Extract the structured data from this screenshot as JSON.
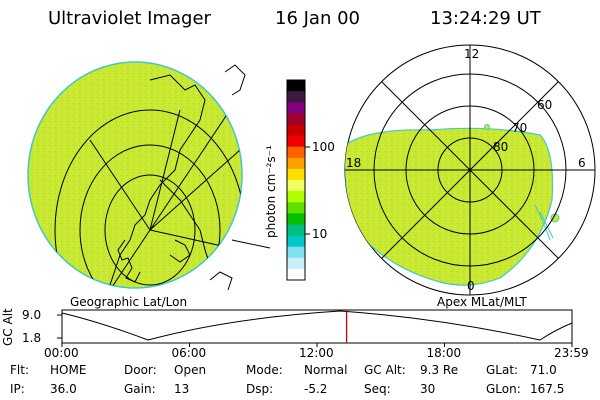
{
  "header": {
    "instrument": "Ultraviolet Imager",
    "date": "16 Jan 00",
    "time": "13:24:29 UT"
  },
  "colorbar": {
    "unit_label": "photon cm⁻²s⁻¹",
    "tick_labels": [
      "100",
      "10"
    ],
    "colors": [
      "#000000",
      "#3a1a40",
      "#800080",
      "#a00030",
      "#c80000",
      "#f00000",
      "#ff6000",
      "#ffa000",
      "#ffe000",
      "#f0ff60",
      "#b0ff00",
      "#60e000",
      "#00c000",
      "#00c080",
      "#00c8c8",
      "#80e0f0",
      "#c8f0f8",
      "#ffffff"
    ]
  },
  "left_panel": {
    "caption": "Geographic Lat/Lon",
    "fill_color": "#c8e832"
  },
  "right_panel": {
    "caption": "Apex MLat/MLT",
    "mlt_labels": {
      "top": "12",
      "left": "18",
      "right": "6",
      "bottom": "0"
    },
    "mlat_labels": [
      "60",
      "70",
      "80"
    ],
    "fill_color": "#c8e832"
  },
  "timeline": {
    "axis_label": "GC Alt",
    "y_ticks": [
      "9.0",
      "1.8"
    ],
    "x_ticks": [
      "00:00",
      "06:00",
      "12:00",
      "18:00",
      "23:59"
    ],
    "current_time_fraction": 0.558,
    "marker_color": "#d00000"
  },
  "info": {
    "row1": [
      {
        "label": "Flt:",
        "value": "HOME"
      },
      {
        "label": "Door:",
        "value": "Open"
      },
      {
        "label": "Mode:",
        "value": "Normal"
      },
      {
        "label": "GC Alt:",
        "value": "9.3 Re"
      },
      {
        "label": "GLat:",
        "value": "71.0"
      }
    ],
    "row2": [
      {
        "label": "IP:",
        "value": "36.0"
      },
      {
        "label": "Gain:",
        "value": "13"
      },
      {
        "label": "Dsp:",
        "value": "-5.2"
      },
      {
        "label": "Seq:",
        "value": "30"
      },
      {
        "label": "GLon:",
        "value": "167.5"
      }
    ]
  }
}
